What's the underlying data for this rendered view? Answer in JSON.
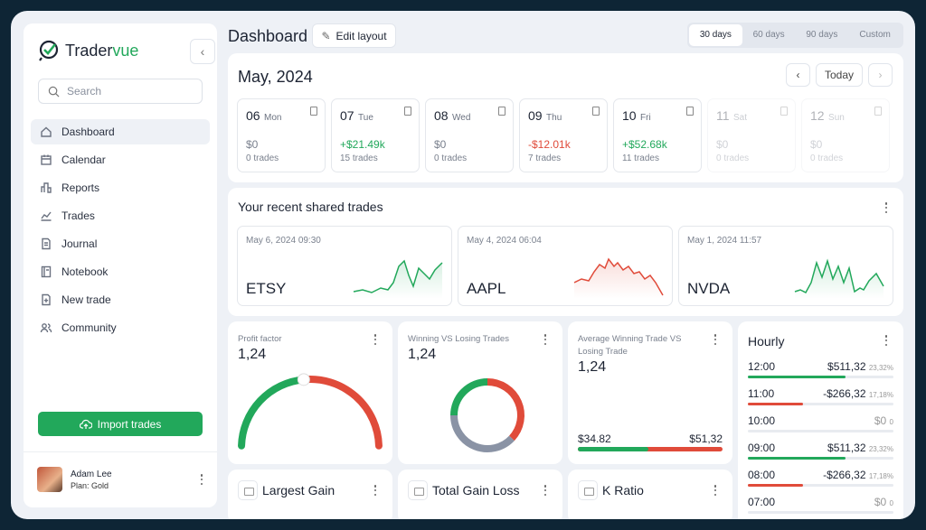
{
  "app": {
    "name_a": "Trader",
    "name_b": "vue",
    "brand_color": "#22a85b"
  },
  "sidebar": {
    "search_placeholder": "Search",
    "items": [
      {
        "label": "Dashboard",
        "icon": "home-icon"
      },
      {
        "label": "Calendar",
        "icon": "calendar-icon"
      },
      {
        "label": "Reports",
        "icon": "bar-chart-icon"
      },
      {
        "label": "Trades",
        "icon": "line-chart-icon"
      },
      {
        "label": "Journal",
        "icon": "document-icon"
      },
      {
        "label": "Notebook",
        "icon": "notebook-icon"
      },
      {
        "label": "New trade",
        "icon": "add-document-icon"
      },
      {
        "label": "Community",
        "icon": "users-icon"
      }
    ],
    "import_label": "Import trades",
    "user": {
      "name": "Adam Lee",
      "plan": "Plan: Gold"
    }
  },
  "header": {
    "title": "Dashboard",
    "edit_label": "Edit layout",
    "ranges": [
      "30 days",
      "60 days",
      "90 days",
      "Custom"
    ],
    "selected_range": "30 days"
  },
  "calendar": {
    "month": "May, 2024",
    "today_label": "Today",
    "days": [
      {
        "num": "06",
        "wd": "Mon",
        "amount": "$0",
        "trades": "0 trades",
        "tone": "zero"
      },
      {
        "num": "07",
        "wd": "Tue",
        "amount": "+$21.49k",
        "trades": "15 trades",
        "tone": "pos"
      },
      {
        "num": "08",
        "wd": "Wed",
        "amount": "$0",
        "trades": "0 trades",
        "tone": "zero"
      },
      {
        "num": "09",
        "wd": "Thu",
        "amount": "-$12.01k",
        "trades": "7 trades",
        "tone": "neg"
      },
      {
        "num": "10",
        "wd": "Fri",
        "amount": "+$52.68k",
        "trades": "11 trades",
        "tone": "pos"
      },
      {
        "num": "11",
        "wd": "Sat",
        "amount": "$0",
        "trades": "0 trades",
        "tone": "dim"
      },
      {
        "num": "12",
        "wd": "Sun",
        "amount": "$0",
        "trades": "0 trades",
        "tone": "dim"
      }
    ]
  },
  "shared": {
    "title": "Your recent shared trades",
    "trades": [
      {
        "date": "May 6, 2024 09:30",
        "symbol": "ETSY",
        "trend": "up",
        "color": "#22a85b"
      },
      {
        "date": "May 4, 2024 06:04",
        "symbol": "AAPL",
        "trend": "down",
        "color": "#e04b3a"
      },
      {
        "date": "May 1, 2024 11:57",
        "symbol": "NVDA",
        "trend": "up",
        "color": "#22a85b"
      }
    ]
  },
  "widgets": {
    "profit_factor": {
      "label": "Profit factor",
      "value": "1,24",
      "win_fraction": 0.47
    },
    "win_loss": {
      "label": "Winning VS Losing Trades",
      "value": "1,24",
      "segments": [
        {
          "color": "#22a85b",
          "share": 0.25
        },
        {
          "color": "#e04b3a",
          "share": 0.37
        },
        {
          "color": "#8a93a5",
          "share": 0.38
        }
      ]
    },
    "avg_trade": {
      "label": "Average Winning Trade VS Losing Trade",
      "value": "1,24",
      "win": "$34.82",
      "loss": "$51,32",
      "win_fraction": 0.49
    },
    "largest_gain": "Largest Gain",
    "total_gain_loss": "Total Gain Loss",
    "k_ratio": "K Ratio"
  },
  "hourly": {
    "title": "Hourly",
    "rows": [
      {
        "time": "12:00",
        "amount": "$511,32",
        "pct": "23,32%",
        "fill": 0.67,
        "color": "#22a85b"
      },
      {
        "time": "11:00",
        "amount": "-$266,32",
        "pct": "17,18%",
        "fill": 0.38,
        "color": "#e04b3a"
      },
      {
        "time": "10:00",
        "amount": "$0",
        "pct": "0",
        "fill": 0,
        "color": "#999"
      },
      {
        "time": "09:00",
        "amount": "$511,32",
        "pct": "23,32%",
        "fill": 0.67,
        "color": "#22a85b"
      },
      {
        "time": "08:00",
        "amount": "-$266,32",
        "pct": "17,18%",
        "fill": 0.38,
        "color": "#e04b3a"
      },
      {
        "time": "07:00",
        "amount": "$0",
        "pct": "0",
        "fill": 0,
        "color": "#999"
      }
    ]
  }
}
